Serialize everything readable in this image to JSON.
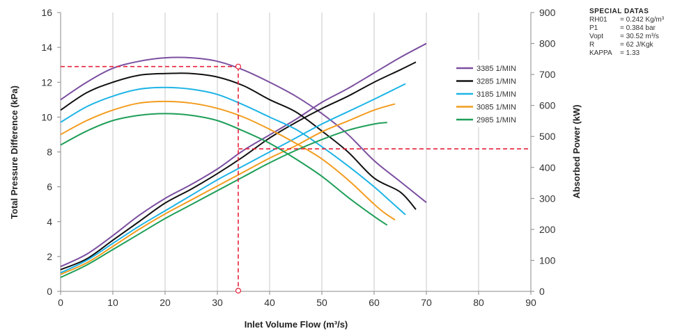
{
  "chart_data": {
    "type": "line",
    "xlabel": "Inlet Volume Flow (m³/s)",
    "ylabel": "Total Pressure Difference (kPa)",
    "y2label": "Absorbed Power (kW)",
    "xlim": [
      0,
      90
    ],
    "ylim": [
      0,
      16
    ],
    "y2lim": [
      0,
      900
    ],
    "xticks": [
      "0",
      "10",
      "20",
      "30",
      "40",
      "50",
      "60",
      "70",
      "80",
      "90"
    ],
    "yticks": [
      "0",
      "2",
      "4",
      "6",
      "8",
      "10",
      "12",
      "14",
      "16"
    ],
    "y2ticks": [
      "0",
      "100",
      "200",
      "300",
      "400",
      "500",
      "600",
      "700",
      "800",
      "900"
    ],
    "grid": "vertical",
    "legend": "right",
    "series": [
      {
        "name": "3385 1/MIN",
        "color": "#7b4fa0",
        "pressure": [
          [
            0,
            11.0
          ],
          [
            5,
            12.0
          ],
          [
            10,
            12.8
          ],
          [
            15,
            13.2
          ],
          [
            20,
            13.4
          ],
          [
            25,
            13.4
          ],
          [
            30,
            13.2
          ],
          [
            35,
            12.7
          ],
          [
            40,
            12.0
          ],
          [
            45,
            11.2
          ],
          [
            50,
            10.2
          ],
          [
            55,
            9.0
          ],
          [
            60,
            7.5
          ],
          [
            65,
            6.3
          ],
          [
            70,
            5.1
          ]
        ],
        "power": [
          [
            0,
            80
          ],
          [
            5,
            120
          ],
          [
            10,
            180
          ],
          [
            15,
            245
          ],
          [
            20,
            300
          ],
          [
            25,
            345
          ],
          [
            30,
            395
          ],
          [
            35,
            455
          ],
          [
            40,
            505
          ],
          [
            45,
            555
          ],
          [
            50,
            610
          ],
          [
            55,
            655
          ],
          [
            60,
            705
          ],
          [
            65,
            755
          ],
          [
            70,
            800
          ]
        ]
      },
      {
        "name": "3285 1/MIN",
        "color": "#111111",
        "pressure": [
          [
            0,
            10.4
          ],
          [
            5,
            11.4
          ],
          [
            10,
            12.0
          ],
          [
            15,
            12.4
          ],
          [
            20,
            12.5
          ],
          [
            25,
            12.5
          ],
          [
            30,
            12.3
          ],
          [
            35,
            11.8
          ],
          [
            40,
            11.0
          ],
          [
            45,
            10.3
          ],
          [
            50,
            9.2
          ],
          [
            55,
            8.0
          ],
          [
            60,
            6.5
          ],
          [
            65,
            5.7
          ],
          [
            68,
            4.7
          ]
        ],
        "power": [
          [
            0,
            70
          ],
          [
            5,
            105
          ],
          [
            10,
            165
          ],
          [
            15,
            225
          ],
          [
            20,
            285
          ],
          [
            25,
            330
          ],
          [
            30,
            380
          ],
          [
            35,
            435
          ],
          [
            40,
            495
          ],
          [
            45,
            545
          ],
          [
            50,
            590
          ],
          [
            55,
            630
          ],
          [
            60,
            675
          ],
          [
            65,
            715
          ],
          [
            68,
            740
          ]
        ]
      },
      {
        "name": "3185 1/MIN",
        "color": "#1eb4e6",
        "pressure": [
          [
            0,
            9.7
          ],
          [
            5,
            10.6
          ],
          [
            10,
            11.2
          ],
          [
            15,
            11.6
          ],
          [
            20,
            11.7
          ],
          [
            25,
            11.6
          ],
          [
            30,
            11.3
          ],
          [
            35,
            10.7
          ],
          [
            40,
            10.0
          ],
          [
            45,
            9.3
          ],
          [
            50,
            8.3
          ],
          [
            55,
            7.2
          ],
          [
            60,
            6.0
          ],
          [
            63,
            5.2
          ],
          [
            66,
            4.4
          ]
        ],
        "power": [
          [
            0,
            60
          ],
          [
            5,
            100
          ],
          [
            10,
            155
          ],
          [
            15,
            210
          ],
          [
            20,
            260
          ],
          [
            25,
            310
          ],
          [
            30,
            360
          ],
          [
            35,
            405
          ],
          [
            40,
            450
          ],
          [
            45,
            495
          ],
          [
            50,
            540
          ],
          [
            55,
            580
          ],
          [
            60,
            620
          ],
          [
            66,
            670
          ]
        ]
      },
      {
        "name": "3085 1/MIN",
        "color": "#f39c1e",
        "pressure": [
          [
            0,
            9.0
          ],
          [
            5,
            9.8
          ],
          [
            10,
            10.4
          ],
          [
            15,
            10.8
          ],
          [
            20,
            10.9
          ],
          [
            25,
            10.8
          ],
          [
            30,
            10.5
          ],
          [
            35,
            10.0
          ],
          [
            40,
            9.3
          ],
          [
            45,
            8.5
          ],
          [
            50,
            7.6
          ],
          [
            55,
            6.4
          ],
          [
            60,
            5.0
          ],
          [
            62,
            4.5
          ],
          [
            64,
            4.1
          ]
        ],
        "power": [
          [
            0,
            55
          ],
          [
            5,
            92
          ],
          [
            10,
            145
          ],
          [
            15,
            200
          ],
          [
            20,
            250
          ],
          [
            25,
            295
          ],
          [
            30,
            340
          ],
          [
            35,
            385
          ],
          [
            40,
            430
          ],
          [
            45,
            470
          ],
          [
            50,
            515
          ],
          [
            55,
            550
          ],
          [
            60,
            585
          ],
          [
            64,
            605
          ]
        ]
      },
      {
        "name": "2985 1/MIN",
        "color": "#1e9e58",
        "pressure": [
          [
            0,
            8.4
          ],
          [
            5,
            9.2
          ],
          [
            10,
            9.8
          ],
          [
            15,
            10.1
          ],
          [
            20,
            10.2
          ],
          [
            25,
            10.1
          ],
          [
            30,
            9.8
          ],
          [
            35,
            9.2
          ],
          [
            40,
            8.5
          ],
          [
            45,
            7.6
          ],
          [
            50,
            6.6
          ],
          [
            55,
            5.4
          ],
          [
            60,
            4.3
          ],
          [
            62.5,
            3.8
          ]
        ],
        "power": [
          [
            0,
            45
          ],
          [
            5,
            85
          ],
          [
            10,
            135
          ],
          [
            15,
            185
          ],
          [
            20,
            235
          ],
          [
            25,
            280
          ],
          [
            30,
            325
          ],
          [
            35,
            370
          ],
          [
            40,
            415
          ],
          [
            45,
            455
          ],
          [
            50,
            490
          ],
          [
            55,
            520
          ],
          [
            60,
            540
          ],
          [
            62.5,
            545
          ]
        ]
      }
    ],
    "operating_point": {
      "x": 34,
      "pressure": 12.9,
      "power": 460,
      "color": "#e8203a"
    },
    "special_datas": {
      "title": "SPECIAL DATAS",
      "rows": [
        {
          "key": "RH01",
          "value": "= 0.242 Kg/m³"
        },
        {
          "key": "P1",
          "value": "= 0.384 bar"
        },
        {
          "key": "Vopt",
          "value": "= 30.52 m³/s"
        },
        {
          "key": "R",
          "value": "= 62 J/Kgk"
        },
        {
          "key": "KAPPA",
          "value": "= 1.33"
        }
      ]
    }
  }
}
